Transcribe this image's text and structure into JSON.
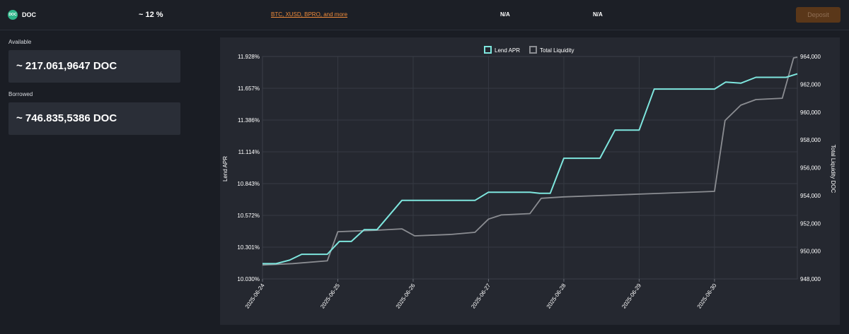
{
  "header": {
    "token_logo_text": "DOC",
    "token_name": "DOC",
    "apr": "~ 12 %",
    "collateral_link": "BTC, XUSD, BPRO, and more",
    "col_a": "N/A",
    "col_b": "N/A",
    "deposit_label": "Deposit"
  },
  "stats": {
    "available_label": "Available",
    "available_value": "~ 217.061,9647 DOC",
    "borrowed_label": "Borrowed",
    "borrowed_value": "~ 746.835,5386 DOC"
  },
  "colors": {
    "apr_line": "#7ee6de",
    "liquidity_line": "#8b8d92",
    "accent": "#ee8a3a"
  },
  "chart_data": {
    "type": "line",
    "legend": [
      "Lend APR",
      "Total Liquidity"
    ],
    "legend_position": "top-center",
    "grid": true,
    "y_left": {
      "label": "Lend APR",
      "ticks": [
        "10.030%",
        "10.301%",
        "10.572%",
        "10.843%",
        "11.114%",
        "11.386%",
        "11.657%",
        "11.928%"
      ],
      "range": [
        10.03,
        11.928
      ]
    },
    "y_right": {
      "label": "Total Liquidity DOC",
      "ticks": [
        "948,000",
        "950,000",
        "952,000",
        "954,000",
        "956,000",
        "958,000",
        "960,000",
        "962,000",
        "964,000"
      ],
      "range": [
        948000,
        964000
      ]
    },
    "x_range": [
      0,
      7.1
    ],
    "x_ticks": [
      {
        "x": 0,
        "label": "2025-06-24"
      },
      {
        "x": 1,
        "label": "2025-06-25"
      },
      {
        "x": 2,
        "label": "2025-06-26"
      },
      {
        "x": 3,
        "label": "2025-06-27"
      },
      {
        "x": 4,
        "label": "2025-06-28"
      },
      {
        "x": 5,
        "label": "2025-06-29"
      },
      {
        "x": 6,
        "label": "2025-06-30"
      }
    ],
    "series": [
      {
        "name": "Lend APR",
        "axis": "left",
        "points": [
          [
            0,
            10.16
          ],
          [
            0.18,
            10.16
          ],
          [
            0.36,
            10.19
          ],
          [
            0.52,
            10.24
          ],
          [
            0.86,
            10.24
          ],
          [
            1.02,
            10.35
          ],
          [
            1.18,
            10.35
          ],
          [
            1.35,
            10.45
          ],
          [
            1.52,
            10.45
          ],
          [
            1.85,
            10.7
          ],
          [
            2.03,
            10.7
          ],
          [
            2.82,
            10.7
          ],
          [
            3.0,
            10.77
          ],
          [
            3.17,
            10.77
          ],
          [
            3.55,
            10.77
          ],
          [
            3.68,
            10.76
          ],
          [
            3.82,
            10.76
          ],
          [
            4.0,
            11.06
          ],
          [
            4.2,
            11.06
          ],
          [
            4.48,
            11.06
          ],
          [
            4.68,
            11.3
          ],
          [
            4.84,
            11.3
          ],
          [
            5.0,
            11.3
          ],
          [
            5.2,
            11.65
          ],
          [
            5.46,
            11.65
          ],
          [
            6.0,
            11.65
          ],
          [
            6.15,
            11.71
          ],
          [
            6.35,
            11.7
          ],
          [
            6.55,
            11.75
          ],
          [
            6.95,
            11.75
          ],
          [
            7.1,
            11.78
          ]
        ]
      },
      {
        "name": "Total Liquidity",
        "axis": "right",
        "points": [
          [
            0,
            949000
          ],
          [
            0.4,
            949100
          ],
          [
            0.86,
            949300
          ],
          [
            1.0,
            951400
          ],
          [
            1.5,
            951500
          ],
          [
            1.85,
            951600
          ],
          [
            2.02,
            951100
          ],
          [
            2.5,
            951200
          ],
          [
            2.82,
            951350
          ],
          [
            3.0,
            952300
          ],
          [
            3.17,
            952600
          ],
          [
            3.55,
            952700
          ],
          [
            3.7,
            953800
          ],
          [
            4.0,
            953900
          ],
          [
            5.0,
            954100
          ],
          [
            6.0,
            954300
          ],
          [
            6.14,
            959400
          ],
          [
            6.35,
            960500
          ],
          [
            6.55,
            960900
          ],
          [
            6.9,
            961000
          ],
          [
            7.05,
            963900
          ],
          [
            7.1,
            963950
          ]
        ]
      }
    ]
  }
}
